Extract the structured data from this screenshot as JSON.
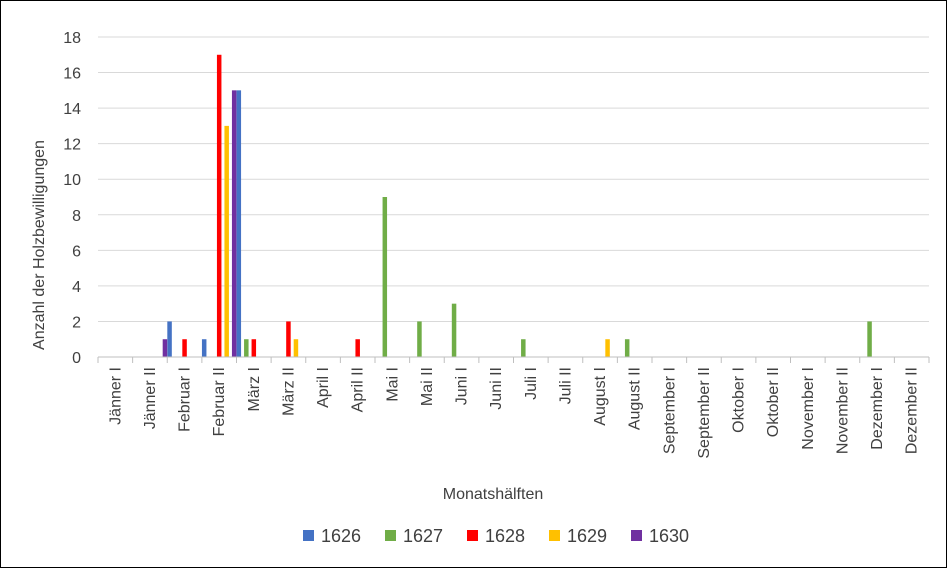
{
  "chart_data": {
    "type": "bar",
    "title": "",
    "xlabel": "Monatshälften",
    "ylabel": "Anzahl der Holzbewilligungen",
    "ylim": [
      0,
      18
    ],
    "yticks": [
      0,
      2,
      4,
      6,
      8,
      10,
      12,
      14,
      16,
      18
    ],
    "grid": true,
    "legend_position": "bottom",
    "categories": [
      "Jänner I",
      "Jänner II",
      "Februar I",
      "Februar II",
      "März I",
      "März II",
      "April I",
      "April II",
      "Mai I",
      "Mai II",
      "Juni I",
      "Juni II",
      "Juli I",
      "Juli II",
      "August I",
      "August II",
      "September I",
      "September II",
      "Oktober I",
      "Oktober II",
      "November I",
      "November II",
      "Dezember I",
      "Dezember II"
    ],
    "series": [
      {
        "name": "1626",
        "color": "#4472C4",
        "values": [
          0,
          0,
          2,
          1,
          15,
          0,
          0,
          0,
          0,
          0,
          0,
          0,
          0,
          0,
          0,
          0,
          0,
          0,
          0,
          0,
          0,
          0,
          0,
          0
        ]
      },
      {
        "name": "1627",
        "color": "#70AD47",
        "values": [
          0,
          0,
          0,
          0,
          1,
          0,
          0,
          0,
          9,
          2,
          3,
          0,
          1,
          0,
          0,
          1,
          0,
          0,
          0,
          0,
          0,
          0,
          2,
          0
        ]
      },
      {
        "name": "1628",
        "color": "#FF0000",
        "values": [
          0,
          0,
          1,
          17,
          1,
          2,
          0,
          1,
          0,
          0,
          0,
          0,
          0,
          0,
          0,
          0,
          0,
          0,
          0,
          0,
          0,
          0,
          0,
          0
        ]
      },
      {
        "name": "1629",
        "color": "#FFC000",
        "values": [
          0,
          0,
          0,
          13,
          0,
          1,
          0,
          0,
          0,
          0,
          0,
          0,
          0,
          0,
          1,
          0,
          0,
          0,
          0,
          0,
          0,
          0,
          0,
          0
        ]
      },
      {
        "name": "1630",
        "color": "#7030A0",
        "values": [
          0,
          1,
          0,
          15,
          0,
          0,
          0,
          0,
          0,
          0,
          0,
          0,
          0,
          0,
          0,
          0,
          0,
          0,
          0,
          0,
          0,
          0,
          0,
          0
        ]
      }
    ]
  }
}
